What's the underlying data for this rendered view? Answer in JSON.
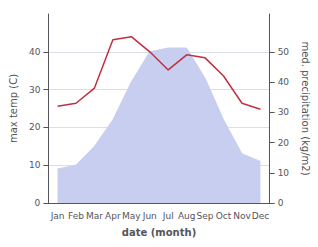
{
  "chart_data": {
    "type": "area",
    "xlabel": "date (month)",
    "ylabel": "max temp (C)",
    "y2label": "med. precipitation (kg/m2)",
    "categories": [
      "Jan",
      "Feb",
      "Mar",
      "Apr",
      "May",
      "Jun",
      "Jul",
      "Aug",
      "Sep",
      "Oct",
      "Nov",
      "Dec"
    ],
    "series": [
      {
        "type": "area",
        "color": "#c8cef0",
        "values": [
          9,
          10,
          15,
          22,
          32,
          40,
          41,
          41,
          33,
          22,
          13,
          11
        ]
      },
      {
        "type": "line",
        "color": "#c03040",
        "axis": "y2",
        "values": [
          32,
          33,
          38,
          54,
          55,
          50,
          44,
          49,
          48,
          42,
          33,
          31
        ]
      }
    ],
    "ylim": [
      0,
      50
    ],
    "yticks": [
      0,
      10,
      20,
      30,
      40
    ],
    "y2lim": [
      0,
      62.5
    ],
    "y2ticks": [
      0,
      10,
      20,
      30,
      40,
      50
    ],
    "grid": true
  }
}
